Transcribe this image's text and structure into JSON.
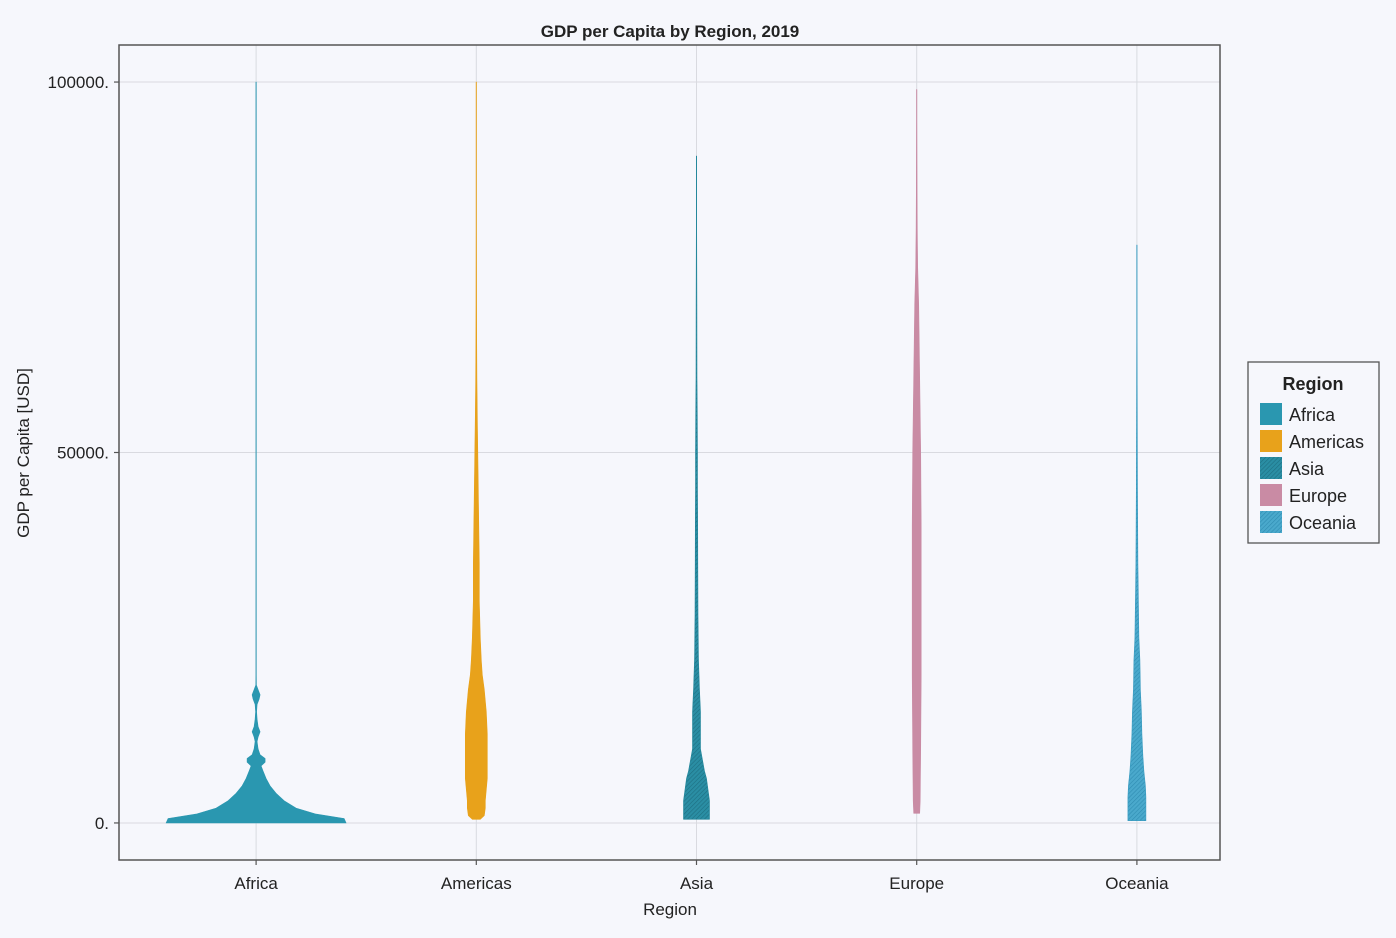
{
  "chart_data": {
    "type": "violin",
    "title": "GDP per Capita by Region, 2019",
    "xlabel": "Region",
    "ylabel": "GDP per Capita [USD]",
    "ylim": [
      -5000,
      105000
    ],
    "yticks": [
      0,
      50000,
      100000
    ],
    "ytick_labels": [
      "0.",
      "50000.",
      "100000."
    ],
    "grid": true,
    "legend": {
      "title": "Region",
      "placement": "right"
    },
    "categories": [
      "Africa",
      "Americas",
      "Asia",
      "Europe",
      "Oceania"
    ],
    "series": [
      {
        "name": "Africa",
        "color": "#2a97b0",
        "pattern": false,
        "profile": [
          [
            0,
            90
          ],
          [
            600,
            88
          ],
          [
            1200,
            60
          ],
          [
            2000,
            40
          ],
          [
            3000,
            28
          ],
          [
            4000,
            20
          ],
          [
            5000,
            14
          ],
          [
            6000,
            10
          ],
          [
            7000,
            7
          ],
          [
            7700,
            5
          ],
          [
            8200,
            9
          ],
          [
            8700,
            9
          ],
          [
            9200,
            4
          ],
          [
            10000,
            2
          ],
          [
            11000,
            1
          ],
          [
            11600,
            2
          ],
          [
            12300,
            4
          ],
          [
            13000,
            2
          ],
          [
            14000,
            1
          ],
          [
            15000,
            0.5
          ],
          [
            16000,
            1
          ],
          [
            16700,
            3
          ],
          [
            17300,
            4
          ],
          [
            18000,
            2
          ],
          [
            18600,
            0.3
          ],
          [
            20000,
            0.2
          ],
          [
            22000,
            0.2
          ],
          [
            100000,
            0.2
          ]
        ]
      },
      {
        "name": "Americas",
        "color": "#e8a21b",
        "pattern": false,
        "profile": [
          [
            500,
            4
          ],
          [
            1000,
            8
          ],
          [
            2000,
            9
          ],
          [
            3000,
            9
          ],
          [
            4500,
            10
          ],
          [
            6000,
            11
          ],
          [
            8000,
            11
          ],
          [
            10000,
            11
          ],
          [
            12000,
            11
          ],
          [
            15000,
            10
          ],
          [
            18000,
            8
          ],
          [
            20000,
            6
          ],
          [
            22000,
            5
          ],
          [
            25000,
            4
          ],
          [
            30000,
            3
          ],
          [
            35000,
            3
          ],
          [
            40000,
            2.5
          ],
          [
            45000,
            2
          ],
          [
            50000,
            1.5
          ],
          [
            55000,
            1
          ],
          [
            60000,
            0.6
          ],
          [
            65000,
            0.4
          ],
          [
            70000,
            0.3
          ],
          [
            80000,
            0.2
          ],
          [
            90000,
            0.2
          ],
          [
            100000,
            0.2
          ]
        ]
      },
      {
        "name": "Asia",
        "color": "#25889c",
        "pattern": true,
        "profile": [
          [
            500,
            13
          ],
          [
            1000,
            13
          ],
          [
            2000,
            13
          ],
          [
            3000,
            13
          ],
          [
            4000,
            12
          ],
          [
            6000,
            10
          ],
          [
            7000,
            8
          ],
          [
            8500,
            6
          ],
          [
            10000,
            4
          ],
          [
            13000,
            4
          ],
          [
            15000,
            4
          ],
          [
            18000,
            3
          ],
          [
            22000,
            2
          ],
          [
            28000,
            1.5
          ],
          [
            35000,
            1.3
          ],
          [
            40000,
            1.2
          ],
          [
            45000,
            1
          ],
          [
            50000,
            1
          ],
          [
            55000,
            0.8
          ],
          [
            60000,
            0.5
          ],
          [
            70000,
            0.4
          ],
          [
            75000,
            0.3
          ],
          [
            80000,
            0.2
          ],
          [
            90000,
            0.2
          ]
        ]
      },
      {
        "name": "Europe",
        "color": "#c98ba4",
        "pattern": false,
        "profile": [
          [
            1300,
            3
          ],
          [
            3000,
            3.5
          ],
          [
            10000,
            4
          ],
          [
            20000,
            4.5
          ],
          [
            30000,
            4.5
          ],
          [
            40000,
            4.5
          ],
          [
            50000,
            4
          ],
          [
            55000,
            3.5
          ],
          [
            60000,
            3
          ],
          [
            65000,
            2.5
          ],
          [
            70000,
            2
          ],
          [
            75000,
            1
          ],
          [
            80000,
            0.6
          ],
          [
            85000,
            0.4
          ],
          [
            90000,
            0.3
          ],
          [
            95000,
            0.2
          ],
          [
            99000,
            0.2
          ]
        ]
      },
      {
        "name": "Oceania",
        "color": "#3a9cc0",
        "pattern": true,
        "profile": [
          [
            300,
            9
          ],
          [
            1000,
            9
          ],
          [
            2000,
            9
          ],
          [
            3500,
            9
          ],
          [
            5000,
            8.5
          ],
          [
            7000,
            7
          ],
          [
            9000,
            6
          ],
          [
            12000,
            5
          ],
          [
            15000,
            4.5
          ],
          [
            18000,
            3.5
          ],
          [
            22000,
            3
          ],
          [
            25000,
            2
          ],
          [
            30000,
            1.5
          ],
          [
            35000,
            1
          ],
          [
            40000,
            0.8
          ],
          [
            45000,
            0.6
          ],
          [
            50000,
            0.5
          ],
          [
            55000,
            0.4
          ],
          [
            60000,
            0.3
          ],
          [
            65000,
            0.2
          ],
          [
            70000,
            0.2
          ],
          [
            78000,
            0.2
          ]
        ]
      }
    ]
  }
}
